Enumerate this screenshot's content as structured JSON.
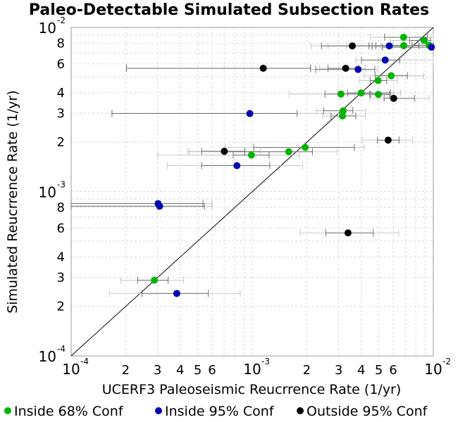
{
  "chart_data": {
    "type": "scatter",
    "title": "Paleo-Detectable Simulated Subsection Rates",
    "xlabel": "UCERF3 Paleoseismic Reucrrence Rate (1/yr)",
    "ylabel": "Simulated Reucrrence Rate (1/yr)",
    "xscale": "log",
    "yscale": "log",
    "xlim": [
      0.0001,
      0.01
    ],
    "ylim": [
      0.0001,
      0.01
    ],
    "grid": true,
    "legend_position": "bottom",
    "reference_line": "y = x",
    "x_major_ticks": [
      {
        "value": 0.0001,
        "mantissa": "10",
        "exponent": "-4"
      },
      {
        "value": 0.001,
        "mantissa": "10",
        "exponent": "-3"
      },
      {
        "value": 0.01,
        "mantissa": "10",
        "exponent": "-2"
      }
    ],
    "x_minor_ticks": [
      {
        "value": 0.0002,
        "label": "2"
      },
      {
        "value": 0.0003,
        "label": "3"
      },
      {
        "value": 0.0004,
        "label": "4"
      },
      {
        "value": 0.0005,
        "label": "5"
      },
      {
        "value": 0.0006,
        "label": "6"
      },
      {
        "value": 0.002,
        "label": "2"
      },
      {
        "value": 0.003,
        "label": "3"
      },
      {
        "value": 0.004,
        "label": "4"
      },
      {
        "value": 0.005,
        "label": "5"
      },
      {
        "value": 0.006,
        "label": "6"
      }
    ],
    "y_major_ticks": [
      {
        "value": 0.0001,
        "mantissa": "10",
        "exponent": "-4"
      },
      {
        "value": 0.001,
        "mantissa": "10",
        "exponent": "-3"
      },
      {
        "value": 0.01,
        "mantissa": "10",
        "exponent": "-2"
      }
    ],
    "y_minor_ticks": [
      {
        "value": 0.0002,
        "label": "2"
      },
      {
        "value": 0.0003,
        "label": "3"
      },
      {
        "value": 0.0004,
        "label": "4"
      },
      {
        "value": 0.0006,
        "label": "6"
      },
      {
        "value": 0.0008,
        "label": "8"
      },
      {
        "value": 0.002,
        "label": "2"
      },
      {
        "value": 0.003,
        "label": "3"
      },
      {
        "value": 0.004,
        "label": "4"
      },
      {
        "value": 0.006,
        "label": "6"
      },
      {
        "value": 0.008,
        "label": "8"
      }
    ],
    "series": [
      {
        "name": "Inside 68% Conf",
        "color": "#00b400",
        "points": [
          {
            "x": 0.000288,
            "y": 0.000289,
            "ci68": [
              0.000233,
              0.000343
            ],
            "ci95": [
              0.000188,
              0.000418
            ]
          },
          {
            "x": 0.00099,
            "y": 0.00167,
            "ci68": [
              0.000785,
              0.00124
            ],
            "ci95": [
              0.000301,
              0.00182
            ]
          },
          {
            "x": 0.00159,
            "y": 0.00175,
            "ci68": [
              0.000707,
              0.00215
            ],
            "ci95": [
              0.000448,
              0.00295
            ]
          },
          {
            "x": 0.00196,
            "y": 0.00186,
            "ci68": [
              0.00102,
              0.00366
            ],
            "ci95": [
              0.000707,
              0.00415
            ]
          },
          {
            "x": 0.00315,
            "y": 0.00289,
            "ci68": [
              0.00272,
              0.00373
            ],
            "ci95": [
              0.00245,
              0.00422
            ]
          },
          {
            "x": 0.00318,
            "y": 0.00311,
            "ci68": [
              0.00248,
              0.00359
            ],
            "ci95": [
              0.00226,
              0.00423
            ]
          },
          {
            "x": 0.00309,
            "y": 0.00393,
            "ci68": [
              0.00252,
              0.00445
            ],
            "ci95": [
              0.0016,
              0.00555
            ]
          },
          {
            "x": 0.00399,
            "y": 0.00399,
            "ci68": [
              0.00336,
              0.0058
            ],
            "ci95": [
              0.00297,
              0.00659
            ]
          },
          {
            "x": 0.00497,
            "y": 0.00391,
            "ci68": [
              0.00451,
              0.00572
            ],
            "ci95": [
              0.00367,
              0.00604
            ]
          },
          {
            "x": 0.00495,
            "y": 0.00475,
            "ci68": [
              0.00448,
              0.00553
            ],
            "ci95": [
              0.00389,
              0.00635
            ]
          },
          {
            "x": 0.00585,
            "y": 0.00508,
            "ci68": [
              0.00477,
              0.00719
            ],
            "ci95": [
              0.00415,
              0.00882
            ]
          },
          {
            "x": 0.00685,
            "y": 0.00871,
            "ci68": [
              0.00538,
              0.00926
            ],
            "ci95": [
              0.00449,
              0.01
            ]
          },
          {
            "x": 0.00686,
            "y": 0.00775,
            "ci68": [
              0.00481,
              0.00832
            ],
            "ci95": [
              0.00331,
              0.0096
            ]
          },
          {
            "x": 0.00889,
            "y": 0.00833,
            "ci68": [
              0.00739,
              0.00965
            ],
            "ci95": [
              0.00578,
              0.01
            ]
          },
          {
            "x": 0.00947,
            "y": 0.00779,
            "ci68": [
              0.00764,
              0.01
            ],
            "ci95": [
              0.00599,
              0.01
            ]
          }
        ]
      },
      {
        "name": "Inside 95% Conf",
        "color": "#0000b4",
        "points": [
          {
            "x": 0.000383,
            "y": 0.00024,
            "ci68": [
              0.000246,
              0.000572
            ],
            "ci95": [
              0.000163,
              0.000858
            ]
          },
          {
            "x": 0.000302,
            "y": 0.000846,
            "ci68": [
              6.55e-05,
              0.000534
            ],
            "ci95": [
              6.55e-05,
              0.000597
            ]
          },
          {
            "x": 0.000308,
            "y": 0.000815,
            "ci68": [
              6.55e-05,
              0.000544
            ],
            "ci95": [
              6.55e-05,
              0.000602
            ]
          },
          {
            "x": 0.000823,
            "y": 0.00144,
            "ci68": [
              0.000525,
              0.00125
            ],
            "ci95": [
              0.00034,
              0.0019
            ]
          },
          {
            "x": 0.00097,
            "y": 0.00299,
            "ci68": [
              0.000168,
              0.00177
            ],
            "ci95": [
              0.000168,
              0.00318
            ]
          },
          {
            "x": 0.00384,
            "y": 0.00555,
            "ci68": [
              0.00224,
              0.00475
            ],
            "ci95": [
              0.00209,
              0.0049
            ]
          },
          {
            "x": 0.00542,
            "y": 0.00633,
            "ci68": [
              0.00401,
              0.00652
            ],
            "ci95": [
              0.00373,
              0.0102
            ]
          },
          {
            "x": 0.00571,
            "y": 0.00772,
            "ci68": [
              0.00441,
              0.00694
            ],
            "ci95": [
              0.00262,
              0.0087
            ]
          },
          {
            "x": 0.00976,
            "y": 0.00758,
            "ci68": [
              0.00524,
              0.0102
            ],
            "ci95": [
              0.00459,
              0.0102
            ]
          }
        ]
      },
      {
        "name": "Outside 95% Conf",
        "color": "#000000",
        "points": [
          {
            "x": 0.000701,
            "y": 0.00176,
            "ci68": [
              0.000526,
              0.00091
            ],
            "ci95": [
              0.000438,
              0.00111
            ]
          },
          {
            "x": 0.00115,
            "y": 0.00564,
            "ci68": [
              0.000202,
              0.0021
            ],
            "ci95": [
              0.000202,
              0.0021
            ]
          },
          {
            "x": 0.00328,
            "y": 0.00564,
            "ci68": [
              0.00262,
              0.00386
            ],
            "ci95": [
              0.00235,
              0.00421
            ]
          },
          {
            "x": 0.00357,
            "y": 0.00772,
            "ci68": [
              0.00241,
              0.00459
            ],
            "ci95": [
              0.00211,
              0.00514
            ]
          },
          {
            "x": 0.00338,
            "y": 0.000561,
            "ci68": [
              0.00255,
              0.00466
            ],
            "ci95": [
              0.00184,
              0.00644
            ]
          },
          {
            "x": 0.00563,
            "y": 0.00206,
            "ci68": [
              0.00491,
              0.00647
            ],
            "ci95": [
              0.00404,
              0.0077
            ]
          },
          {
            "x": 0.00604,
            "y": 0.0037,
            "ci68": [
              0.00535,
              0.00787
            ],
            "ci95": [
              0.00445,
              0.00947
            ]
          }
        ]
      }
    ],
    "legend": [
      {
        "label": "Inside 68% Conf",
        "color": "#00b400"
      },
      {
        "label": "Inside 95% Conf",
        "color": "#0000b4"
      },
      {
        "label": "Outside 95% Conf",
        "color": "#000000"
      }
    ],
    "colors": {
      "frame": "#999999",
      "grid": "#d9d9d9",
      "ci68": "#707070",
      "ci95": "#c8c8c8",
      "reference_line": "#000000"
    }
  }
}
